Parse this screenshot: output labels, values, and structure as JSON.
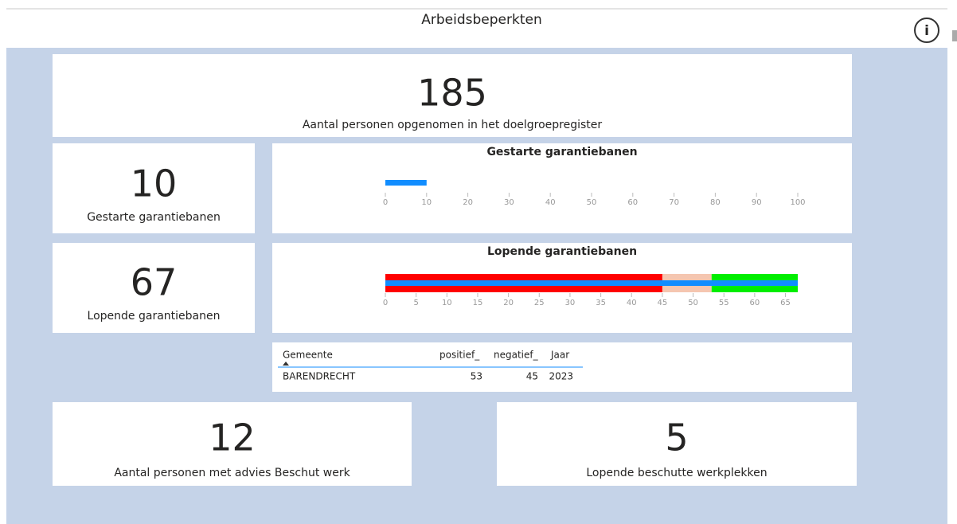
{
  "header": {
    "title": "Arbeidsbeperkten"
  },
  "cards": [
    {
      "value": 185,
      "label": "Aantal personen opgenomen in het doelgroepregister"
    },
    {
      "value": 10,
      "label": "Gestarte garantiebanen"
    },
    {
      "value": 67,
      "label": "Lopende garantiebanen"
    },
    {
      "value": 12,
      "label": "Aantal personen met advies Beschut werk"
    },
    {
      "value": 5,
      "label": "Lopende beschutte werkplekken"
    }
  ],
  "gauges": [
    {
      "type": "bullet",
      "title": "Gestarte garantiebanen",
      "value": 10,
      "color": "#118dff",
      "xlim": [
        0,
        100
      ],
      "xticks": [
        0,
        10,
        20,
        30,
        40,
        50,
        60,
        70,
        80,
        90,
        100
      ]
    },
    {
      "type": "bullet",
      "title": "Lopende garantiebanen",
      "value": 67,
      "color": "#118dff",
      "bands": [
        45,
        53
      ],
      "band_colors": [
        "#ff0000",
        "#f5c6b0",
        "#00ee00"
      ],
      "xlim": [
        0,
        67
      ],
      "xticks": [
        0,
        5,
        10,
        15,
        20,
        25,
        30,
        35,
        40,
        45,
        50,
        55,
        60,
        65
      ]
    }
  ],
  "table": {
    "columns": [
      "Gemeente",
      "positief_",
      "negatief_",
      "Jaar"
    ],
    "rows": [
      [
        "BARENDRECHT",
        53,
        45,
        2023
      ]
    ]
  }
}
